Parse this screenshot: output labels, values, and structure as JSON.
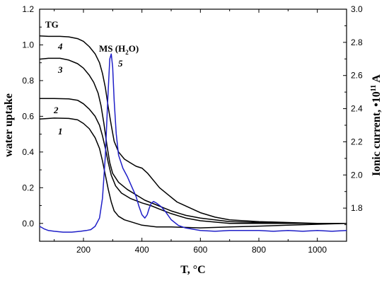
{
  "chart_data": {
    "type": "line",
    "xlabel": "T, °C",
    "ylabel_left": "water uptake",
    "ylabel_right_main": "Ionic current, •10",
    "ylabel_right_sup": "11",
    "ylabel_right_unit": " A",
    "xlim": [
      50,
      1100
    ],
    "ylim_left": [
      -0.1,
      1.2
    ],
    "ylim_right": [
      1.6,
      3.0
    ],
    "x_ticks": [
      200,
      400,
      600,
      800,
      1000
    ],
    "x_tick_labels": [
      "200",
      "400",
      "600",
      "800",
      "1000"
    ],
    "y_left_ticks": [
      0.0,
      0.2,
      0.4,
      0.6,
      0.8,
      1.0,
      1.2
    ],
    "y_left_tick_labels": [
      "0.0",
      "0.2",
      "0.4",
      "0.6",
      "0.8",
      "1.0",
      "1.2"
    ],
    "y_right_ticks": [
      1.8,
      2.0,
      2.2,
      2.4,
      2.6,
      2.8,
      3.0
    ],
    "y_right_tick_labels": [
      "1.8",
      "2.0",
      "2.2",
      "2.4",
      "2.6",
      "2.8",
      "3.0"
    ],
    "annotations": {
      "tg": "TG",
      "ms_prefix": "MS (H",
      "ms_sub": "2",
      "ms_suffix": "O)"
    },
    "series": [
      {
        "label": "1",
        "axis": "left",
        "color": "#000000",
        "points": [
          [
            50,
            0.585
          ],
          [
            100,
            0.59
          ],
          [
            150,
            0.588
          ],
          [
            180,
            0.58
          ],
          [
            200,
            0.56
          ],
          [
            220,
            0.53
          ],
          [
            240,
            0.48
          ],
          [
            255,
            0.42
          ],
          [
            265,
            0.35
          ],
          [
            275,
            0.27
          ],
          [
            285,
            0.19
          ],
          [
            295,
            0.12
          ],
          [
            305,
            0.07
          ],
          [
            320,
            0.04
          ],
          [
            340,
            0.02
          ],
          [
            360,
            0.01
          ],
          [
            400,
            -0.01
          ],
          [
            450,
            -0.02
          ],
          [
            500,
            -0.02
          ],
          [
            600,
            -0.025
          ],
          [
            700,
            -0.02
          ],
          [
            800,
            -0.015
          ],
          [
            900,
            -0.01
          ],
          [
            1000,
            -0.005
          ],
          [
            1100,
            0.0
          ]
        ]
      },
      {
        "label": "2",
        "axis": "left",
        "color": "#000000",
        "points": [
          [
            50,
            0.7
          ],
          [
            100,
            0.7
          ],
          [
            150,
            0.698
          ],
          [
            180,
            0.69
          ],
          [
            200,
            0.67
          ],
          [
            220,
            0.64
          ],
          [
            240,
            0.6
          ],
          [
            255,
            0.55
          ],
          [
            265,
            0.49
          ],
          [
            275,
            0.42
          ],
          [
            285,
            0.34
          ],
          [
            295,
            0.27
          ],
          [
            310,
            0.21
          ],
          [
            330,
            0.17
          ],
          [
            360,
            0.14
          ],
          [
            400,
            0.115
          ],
          [
            430,
            0.1
          ],
          [
            460,
            0.08
          ],
          [
            500,
            0.055
          ],
          [
            550,
            0.03
          ],
          [
            600,
            0.015
          ],
          [
            700,
            0.0
          ],
          [
            800,
            0.0
          ],
          [
            900,
            0.0
          ],
          [
            1000,
            0.0
          ],
          [
            1100,
            0.0
          ]
        ]
      },
      {
        "label": "3",
        "axis": "left",
        "color": "#000000",
        "points": [
          [
            50,
            0.92
          ],
          [
            80,
            0.925
          ],
          [
            120,
            0.925
          ],
          [
            150,
            0.915
          ],
          [
            180,
            0.895
          ],
          [
            200,
            0.87
          ],
          [
            220,
            0.83
          ],
          [
            235,
            0.79
          ],
          [
            250,
            0.73
          ],
          [
            260,
            0.66
          ],
          [
            270,
            0.56
          ],
          [
            280,
            0.44
          ],
          [
            290,
            0.34
          ],
          [
            300,
            0.28
          ],
          [
            320,
            0.23
          ],
          [
            350,
            0.19
          ],
          [
            380,
            0.16
          ],
          [
            410,
            0.13
          ],
          [
            440,
            0.11
          ],
          [
            470,
            0.09
          ],
          [
            500,
            0.07
          ],
          [
            550,
            0.045
          ],
          [
            600,
            0.03
          ],
          [
            650,
            0.02
          ],
          [
            700,
            0.01
          ],
          [
            800,
            0.005
          ],
          [
            900,
            0.0
          ],
          [
            1000,
            0.0
          ],
          [
            1100,
            0.0
          ]
        ]
      },
      {
        "label": "4",
        "axis": "left",
        "color": "#000000",
        "points": [
          [
            50,
            1.05
          ],
          [
            80,
            1.048
          ],
          [
            120,
            1.048
          ],
          [
            150,
            1.045
          ],
          [
            180,
            1.035
          ],
          [
            200,
            1.02
          ],
          [
            220,
            0.99
          ],
          [
            240,
            0.95
          ],
          [
            255,
            0.9
          ],
          [
            265,
            0.84
          ],
          [
            275,
            0.76
          ],
          [
            285,
            0.65
          ],
          [
            295,
            0.55
          ],
          [
            305,
            0.46
          ],
          [
            320,
            0.4
          ],
          [
            340,
            0.36
          ],
          [
            360,
            0.34
          ],
          [
            380,
            0.32
          ],
          [
            400,
            0.31
          ],
          [
            420,
            0.28
          ],
          [
            440,
            0.24
          ],
          [
            460,
            0.2
          ],
          [
            490,
            0.16
          ],
          [
            520,
            0.12
          ],
          [
            560,
            0.09
          ],
          [
            600,
            0.06
          ],
          [
            650,
            0.035
          ],
          [
            700,
            0.02
          ],
          [
            800,
            0.01
          ],
          [
            900,
            0.005
          ],
          [
            1000,
            0.0
          ],
          [
            1100,
            0.0
          ]
        ]
      },
      {
        "label": "5",
        "axis": "right",
        "color": "#1f1fc8",
        "points": [
          [
            50,
            1.69
          ],
          [
            65,
            1.675
          ],
          [
            80,
            1.665
          ],
          [
            100,
            1.66
          ],
          [
            130,
            1.655
          ],
          [
            160,
            1.655
          ],
          [
            190,
            1.66
          ],
          [
            210,
            1.665
          ],
          [
            225,
            1.67
          ],
          [
            240,
            1.69
          ],
          [
            255,
            1.74
          ],
          [
            265,
            1.86
          ],
          [
            275,
            2.12
          ],
          [
            283,
            2.45
          ],
          [
            290,
            2.7
          ],
          [
            295,
            2.73
          ],
          [
            300,
            2.65
          ],
          [
            305,
            2.45
          ],
          [
            312,
            2.25
          ],
          [
            320,
            2.12
          ],
          [
            335,
            2.04
          ],
          [
            350,
            1.99
          ],
          [
            365,
            1.93
          ],
          [
            380,
            1.87
          ],
          [
            390,
            1.81
          ],
          [
            400,
            1.76
          ],
          [
            410,
            1.74
          ],
          [
            418,
            1.76
          ],
          [
            425,
            1.8
          ],
          [
            432,
            1.83
          ],
          [
            440,
            1.84
          ],
          [
            450,
            1.83
          ],
          [
            465,
            1.81
          ],
          [
            480,
            1.78
          ],
          [
            500,
            1.73
          ],
          [
            525,
            1.695
          ],
          [
            550,
            1.68
          ],
          [
            600,
            1.665
          ],
          [
            650,
            1.66
          ],
          [
            700,
            1.665
          ],
          [
            750,
            1.665
          ],
          [
            800,
            1.665
          ],
          [
            850,
            1.66
          ],
          [
            900,
            1.665
          ],
          [
            950,
            1.66
          ],
          [
            1000,
            1.665
          ],
          [
            1050,
            1.66
          ],
          [
            1100,
            1.665
          ]
        ]
      }
    ],
    "curve_labels": [
      {
        "text": "1",
        "x": 205,
        "y": 0.55
      },
      {
        "text": "2",
        "x": 205,
        "y": 0.68
      },
      {
        "text": "3",
        "x": 205,
        "y": 0.96
      },
      {
        "text": "4",
        "x": 205,
        "y": 1.085
      },
      {
        "text": "5",
        "x": 330,
        "y": 0.95
      }
    ]
  }
}
